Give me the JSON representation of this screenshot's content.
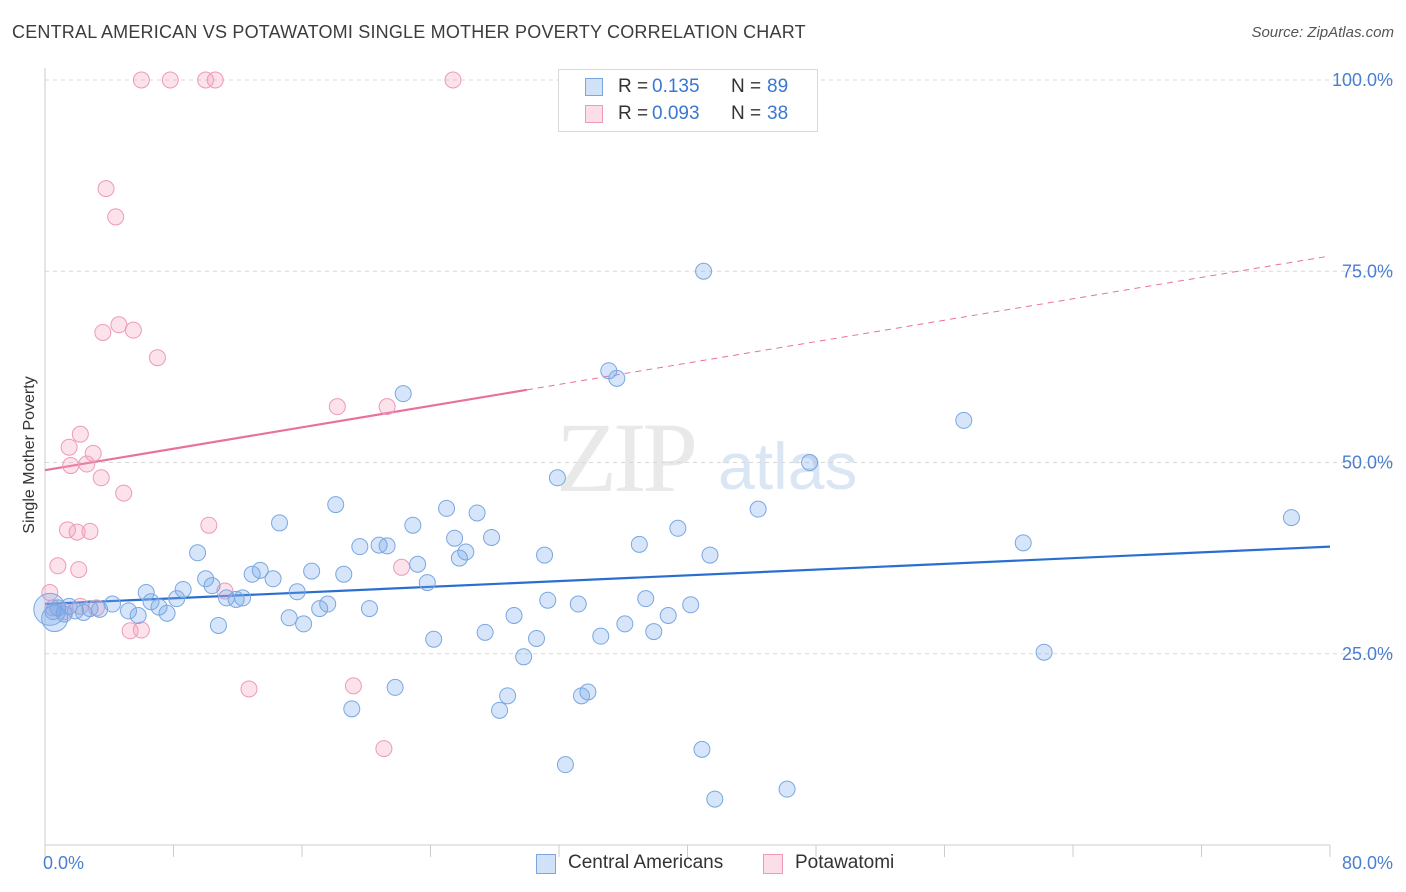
{
  "header": {
    "title": "CENTRAL AMERICAN VS POTAWATOMI SINGLE MOTHER POVERTY CORRELATION CHART",
    "source": "Source: ZipAtlas.com"
  },
  "watermark": {
    "zip": "ZIP",
    "atlas": "atlas"
  },
  "legend": {
    "rows": [
      {
        "r_label": "R =",
        "r_value": "0.135",
        "n_label": "N =",
        "n_value": "89"
      },
      {
        "r_label": "R =",
        "r_value": "0.093",
        "n_label": "N =",
        "n_value": "38"
      }
    ]
  },
  "bottom_legend": {
    "series1": "Central Americans",
    "series2": "Potawatomi"
  },
  "colors": {
    "blue_fill": "rgba(120,170,235,0.30)",
    "blue_stroke": "#7aa7e0",
    "blue_line": "#2a6fcf",
    "pink_fill": "rgba(245,160,190,0.30)",
    "pink_stroke": "#ee9ab8",
    "pink_line": "#e8729a",
    "grid": "#d8d8d8",
    "tick_text": "#4a7fd0"
  },
  "chart_data": {
    "type": "scatter",
    "title": "CENTRAL AMERICAN VS POTAWATOMI SINGLE MOTHER POVERTY CORRELATION CHART",
    "xlabel": "",
    "ylabel": "Single Mother Poverty",
    "xlim": [
      0,
      80
    ],
    "ylim": [
      0,
      105
    ],
    "x_tick_labels": [
      "0.0%",
      "80.0%"
    ],
    "y_ticks": [
      25,
      50,
      75,
      100
    ],
    "y_tick_labels": [
      "25.0%",
      "50.0%",
      "75.0%",
      "100.0%"
    ],
    "grid": true,
    "series": [
      {
        "name": "Central Americans",
        "R": 0.135,
        "N": 89,
        "trend": {
          "x": [
            0,
            80
          ],
          "y": [
            31.5,
            39.0
          ],
          "dashed_extension": false
        },
        "points": [
          [
            0.5,
            30.5
          ],
          [
            0.8,
            31
          ],
          [
            1.2,
            30.2
          ],
          [
            1.5,
            31.2
          ],
          [
            1.9,
            30.6
          ],
          [
            2.4,
            30.4
          ],
          [
            2.8,
            30.9
          ],
          [
            3.4,
            30.8
          ],
          [
            4.2,
            31.5
          ],
          [
            5.2,
            30.6
          ],
          [
            5.8,
            30
          ],
          [
            6.3,
            33
          ],
          [
            6.6,
            31.8
          ],
          [
            7.1,
            31.1
          ],
          [
            7.6,
            30.3
          ],
          [
            8.2,
            32.2
          ],
          [
            8.6,
            33.4
          ],
          [
            9.5,
            38.2
          ],
          [
            10.0,
            34.8
          ],
          [
            10.4,
            33.9
          ],
          [
            10.8,
            28.7
          ],
          [
            11.3,
            32.3
          ],
          [
            11.9,
            32.1
          ],
          [
            12.3,
            32.3
          ],
          [
            12.9,
            35.4
          ],
          [
            13.4,
            35.9
          ],
          [
            14.2,
            34.8
          ],
          [
            14.6,
            42.1
          ],
          [
            15.2,
            29.7
          ],
          [
            15.7,
            33.1
          ],
          [
            16.1,
            28.9
          ],
          [
            16.6,
            35.8
          ],
          [
            17.1,
            30.9
          ],
          [
            17.6,
            31.5
          ],
          [
            18.1,
            44.5
          ],
          [
            18.6,
            35.4
          ],
          [
            19.1,
            17.8
          ],
          [
            19.6,
            39.0
          ],
          [
            20.2,
            30.9
          ],
          [
            20.8,
            39.2
          ],
          [
            21.3,
            39.1
          ],
          [
            21.8,
            20.6
          ],
          [
            22.3,
            59.0
          ],
          [
            22.9,
            41.8
          ],
          [
            23.2,
            36.7
          ],
          [
            23.8,
            34.3
          ],
          [
            24.2,
            26.9
          ],
          [
            25.0,
            44.0
          ],
          [
            25.5,
            40.1
          ],
          [
            25.8,
            37.5
          ],
          [
            26.2,
            38.3
          ],
          [
            26.9,
            43.4
          ],
          [
            27.4,
            27.8
          ],
          [
            27.8,
            40.2
          ],
          [
            28.3,
            17.6
          ],
          [
            28.8,
            19.5
          ],
          [
            29.2,
            30.0
          ],
          [
            29.8,
            24.6
          ],
          [
            30.6,
            27.0
          ],
          [
            31.1,
            37.9
          ],
          [
            31.3,
            32.0
          ],
          [
            31.9,
            48.0
          ],
          [
            32.4,
            10.5
          ],
          [
            33.2,
            31.5
          ],
          [
            33.4,
            19.5
          ],
          [
            33.8,
            20.0
          ],
          [
            34.6,
            27.3
          ],
          [
            35.1,
            62.0
          ],
          [
            35.6,
            61.0
          ],
          [
            36.1,
            28.9
          ],
          [
            37.0,
            39.3
          ],
          [
            37.4,
            32.2
          ],
          [
            37.9,
            27.9
          ],
          [
            38.8,
            30.0
          ],
          [
            39.4,
            41.4
          ],
          [
            40.2,
            31.4
          ],
          [
            40.9,
            12.5
          ],
          [
            41.0,
            75.0
          ],
          [
            41.4,
            37.9
          ],
          [
            41.7,
            6.0
          ],
          [
            44.4,
            43.9
          ],
          [
            46.2,
            7.3
          ],
          [
            47.6,
            50.0
          ],
          [
            57.2,
            55.5
          ],
          [
            60.9,
            39.5
          ],
          [
            62.2,
            25.2
          ],
          [
            77.6,
            42.8
          ],
          [
            0.3,
            30.8
          ],
          [
            0.6,
            29.6
          ]
        ],
        "sizes": [
          "m",
          "m",
          "m",
          "m",
          "m",
          "m",
          "m",
          "m",
          "m",
          "m",
          "m",
          "m",
          "m",
          "m",
          "m",
          "m",
          "m",
          "m",
          "m",
          "m",
          "m",
          "m",
          "m",
          "m",
          "m",
          "m",
          "m",
          "m",
          "m",
          "m",
          "m",
          "m",
          "m",
          "m",
          "m",
          "m",
          "m",
          "m",
          "m",
          "m",
          "m",
          "m",
          "m",
          "m",
          "m",
          "m",
          "m",
          "m",
          "m",
          "m",
          "m",
          "m",
          "m",
          "m",
          "m",
          "m",
          "m",
          "m",
          "m",
          "m",
          "m",
          "m",
          "m",
          "m",
          "m",
          "m",
          "m",
          "m",
          "m",
          "m",
          "m",
          "m",
          "m",
          "m",
          "m",
          "m",
          "m",
          "m",
          "m",
          "m",
          "m",
          "m",
          "m",
          "m",
          "m",
          "m",
          "m",
          "xl",
          "l"
        ]
      },
      {
        "name": "Potawatomi",
        "R": 0.093,
        "N": 38,
        "trend": {
          "x": [
            0,
            30
          ],
          "y": [
            49.0,
            59.5
          ],
          "dashed_extension": true,
          "dash_to": [
            80,
            77.0
          ]
        },
        "points": [
          [
            0.3,
            33.0
          ],
          [
            0.5,
            31.0
          ],
          [
            0.8,
            36.5
          ],
          [
            1.2,
            30.5
          ],
          [
            1.4,
            41.2
          ],
          [
            1.5,
            52.0
          ],
          [
            1.6,
            49.6
          ],
          [
            2.0,
            40.9
          ],
          [
            2.1,
            36.0
          ],
          [
            2.2,
            53.7
          ],
          [
            2.6,
            49.8
          ],
          [
            2.8,
            41.0
          ],
          [
            3.0,
            51.2
          ],
          [
            3.2,
            31.0
          ],
          [
            3.5,
            48.0
          ],
          [
            3.6,
            67.0
          ],
          [
            3.8,
            85.8
          ],
          [
            4.4,
            82.1
          ],
          [
            4.6,
            68.0
          ],
          [
            4.9,
            46.0
          ],
          [
            5.3,
            28.0
          ],
          [
            5.5,
            67.3
          ],
          [
            6.0,
            28.1
          ],
          [
            6.0,
            100
          ],
          [
            7.0,
            63.7
          ],
          [
            7.8,
            100
          ],
          [
            10.0,
            100
          ],
          [
            10.2,
            41.8
          ],
          [
            10.6,
            100
          ],
          [
            11.2,
            33.2
          ],
          [
            12.7,
            20.4
          ],
          [
            18.2,
            57.3
          ],
          [
            19.2,
            20.8
          ],
          [
            21.1,
            12.6
          ],
          [
            21.3,
            57.3
          ],
          [
            22.2,
            36.3
          ],
          [
            25.4,
            100
          ],
          [
            2.2,
            31.2
          ]
        ]
      }
    ]
  }
}
